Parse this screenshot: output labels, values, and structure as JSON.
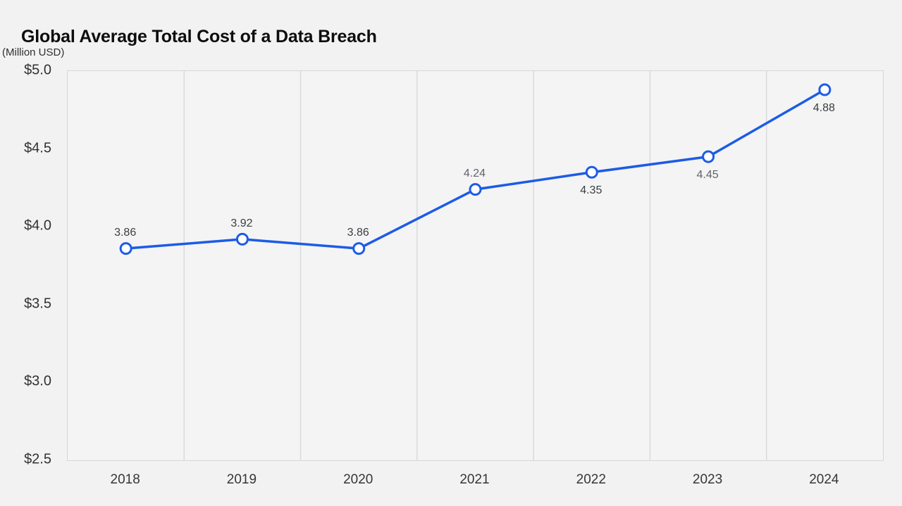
{
  "chart_data": {
    "type": "line",
    "title": "Global Average Total Cost of a Data Breach",
    "unit_label": "(Million USD)",
    "x_labels": [
      "2018",
      "2019",
      "2020",
      "2021",
      "2022",
      "2023",
      "2024"
    ],
    "series": [
      {
        "name": "Global average total cost of a data breach",
        "values": [
          3.86,
          3.92,
          3.86,
          4.24,
          4.35,
          4.45,
          4.88
        ]
      }
    ],
    "values": [
      3.86,
      3.92,
      3.86,
      4.24,
      4.35,
      4.45,
      4.88
    ],
    "point_labels": [
      {
        "text": "3.86",
        "placement": "above",
        "color": "#3a3d41"
      },
      {
        "text": "3.92",
        "placement": "above",
        "color": "#3a3d41"
      },
      {
        "text": "3.86",
        "placement": "above",
        "color": "#3a3d41"
      },
      {
        "text": "4.24",
        "placement": "above",
        "color": "#5f6368"
      },
      {
        "text": "4.35",
        "placement": "below",
        "color": "#3a3d41"
      },
      {
        "text": "4.45",
        "placement": "below",
        "color": "#5f6368"
      },
      {
        "text": "4.88",
        "placement": "below",
        "color": "#3a3d41"
      }
    ],
    "y_ticks": [
      {
        "label": "$5.0",
        "value": 5.0
      },
      {
        "label": "$4.5",
        "value": 4.5
      },
      {
        "label": "$4.0",
        "value": 4.0
      },
      {
        "label": "$3.5",
        "value": 3.5
      },
      {
        "label": "$3.0",
        "value": 3.0
      },
      {
        "label": "$2.5",
        "value": 2.5
      }
    ],
    "ylim": [
      2.5,
      5.0
    ],
    "grid": "vertical-only",
    "legend": null,
    "colors": {
      "line": "#1c5ce5",
      "marker_fill": "#ffffff",
      "grid": "#d9dadd",
      "plot_border": "#d5d7db",
      "background": "#f2f2f3",
      "plot_background": "#f4f4f5"
    }
  }
}
